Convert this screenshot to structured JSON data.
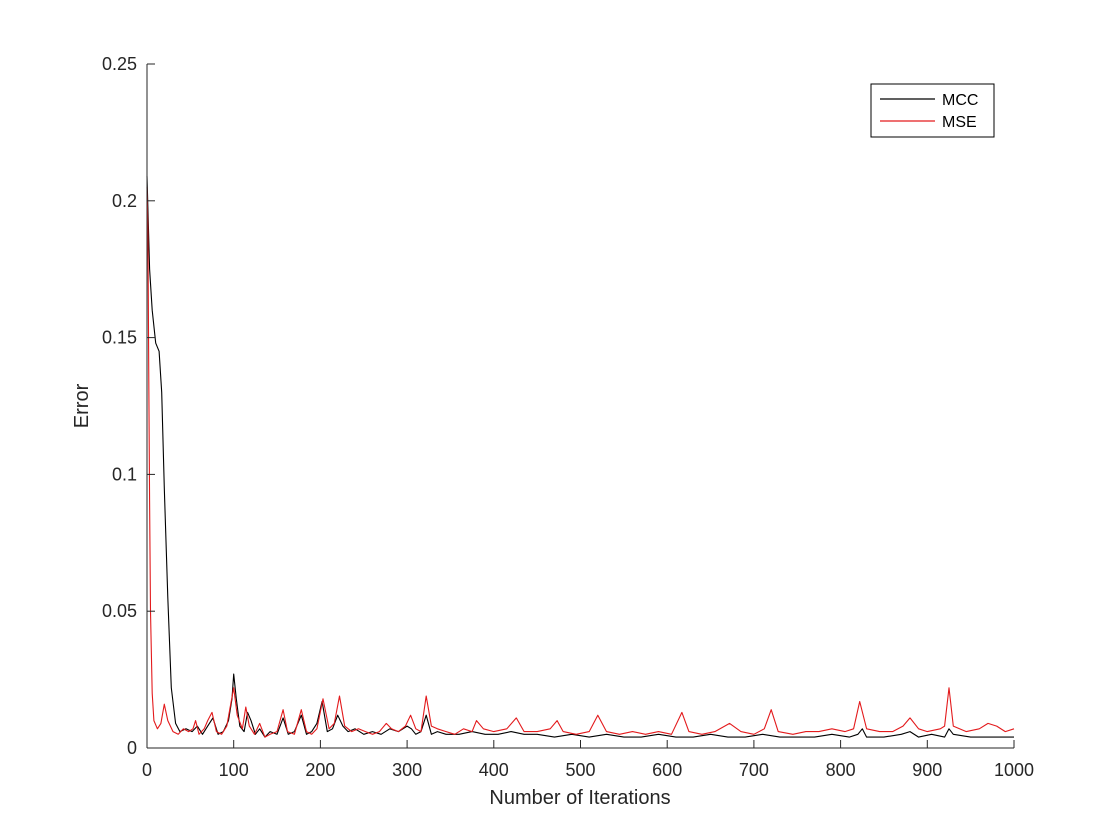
{
  "chart_data": {
    "type": "line",
    "title": "",
    "xlabel": "Number of Iterations",
    "ylabel": "Error",
    "xlim": [
      0,
      1000
    ],
    "ylim": [
      0,
      0.25
    ],
    "xticks": [
      0,
      100,
      200,
      300,
      400,
      500,
      600,
      700,
      800,
      900,
      1000
    ],
    "xtick_labels": [
      "0",
      "100",
      "200",
      "300",
      "400",
      "500",
      "600",
      "700",
      "800",
      "900",
      "1000"
    ],
    "yticks": [
      0,
      0.05,
      0.1,
      0.15,
      0.2,
      0.25
    ],
    "ytick_labels": [
      "0",
      "0.05",
      "0.1",
      "0.15",
      "0.2",
      "0.25"
    ],
    "grid": false,
    "legend_position": "top-right",
    "series": [
      {
        "name": "MCC",
        "color": "#000000",
        "x": [
          0,
          3,
          6,
          10,
          14,
          17,
          20,
          24,
          28,
          33,
          38,
          45,
          52,
          58,
          64,
          70,
          76,
          82,
          88,
          94,
          98,
          100,
          103,
          107,
          112,
          116,
          120,
          125,
          130,
          136,
          142,
          150,
          157,
          163,
          170,
          178,
          184,
          190,
          196,
          202,
          208,
          214,
          220,
          226,
          232,
          240,
          250,
          260,
          270,
          280,
          290,
          300,
          305,
          310,
          316,
          322,
          328,
          335,
          345,
          360,
          375,
          390,
          405,
          420,
          435,
          450,
          470,
          490,
          510,
          530,
          550,
          570,
          590,
          610,
          630,
          650,
          670,
          690,
          710,
          730,
          750,
          770,
          790,
          810,
          820,
          825,
          830,
          850,
          870,
          880,
          890,
          905,
          920,
          925,
          930,
          950,
          970,
          985,
          1000
        ],
        "y": [
          0.209,
          0.175,
          0.16,
          0.148,
          0.145,
          0.13,
          0.095,
          0.055,
          0.022,
          0.009,
          0.006,
          0.007,
          0.006,
          0.008,
          0.005,
          0.008,
          0.011,
          0.005,
          0.006,
          0.01,
          0.018,
          0.027,
          0.018,
          0.008,
          0.006,
          0.013,
          0.01,
          0.005,
          0.007,
          0.004,
          0.006,
          0.005,
          0.011,
          0.005,
          0.006,
          0.012,
          0.005,
          0.006,
          0.009,
          0.017,
          0.006,
          0.007,
          0.012,
          0.008,
          0.006,
          0.007,
          0.005,
          0.006,
          0.005,
          0.007,
          0.006,
          0.008,
          0.007,
          0.005,
          0.006,
          0.012,
          0.005,
          0.006,
          0.005,
          0.005,
          0.006,
          0.005,
          0.005,
          0.006,
          0.005,
          0.005,
          0.004,
          0.005,
          0.004,
          0.005,
          0.004,
          0.004,
          0.005,
          0.004,
          0.004,
          0.005,
          0.004,
          0.004,
          0.005,
          0.004,
          0.004,
          0.004,
          0.005,
          0.004,
          0.005,
          0.007,
          0.004,
          0.004,
          0.005,
          0.006,
          0.004,
          0.005,
          0.004,
          0.007,
          0.005,
          0.004,
          0.004,
          0.004,
          0.004
        ]
      },
      {
        "name": "MSE",
        "color": "#e31a1c",
        "x": [
          0,
          1,
          2,
          3,
          4,
          6,
          8,
          12,
          16,
          20,
          24,
          30,
          36,
          42,
          48,
          53,
          56,
          60,
          66,
          70,
          75,
          80,
          86,
          92,
          96,
          100,
          104,
          110,
          114,
          118,
          124,
          130,
          136,
          142,
          150,
          157,
          162,
          170,
          178,
          184,
          190,
          196,
          203,
          210,
          216,
          222,
          228,
          236,
          244,
          252,
          260,
          268,
          276,
          282,
          290,
          298,
          304,
          310,
          316,
          322,
          328,
          335,
          345,
          355,
          365,
          375,
          380,
          388,
          400,
          415,
          426,
          435,
          450,
          465,
          473,
          480,
          495,
          510,
          520,
          530,
          545,
          560,
          575,
          590,
          605,
          617,
          625,
          640,
          655,
          672,
          685,
          700,
          712,
          720,
          728,
          745,
          760,
          775,
          790,
          805,
          815,
          822,
          830,
          845,
          860,
          872,
          880,
          890,
          900,
          915,
          920,
          925,
          930,
          945,
          960,
          970,
          980,
          990,
          1000
        ],
        "y": [
          0.205,
          0.19,
          0.14,
          0.09,
          0.05,
          0.02,
          0.01,
          0.007,
          0.009,
          0.016,
          0.01,
          0.006,
          0.005,
          0.007,
          0.006,
          0.007,
          0.01,
          0.005,
          0.007,
          0.01,
          0.013,
          0.006,
          0.005,
          0.008,
          0.015,
          0.022,
          0.012,
          0.007,
          0.015,
          0.008,
          0.005,
          0.009,
          0.004,
          0.005,
          0.006,
          0.014,
          0.006,
          0.005,
          0.014,
          0.006,
          0.005,
          0.007,
          0.018,
          0.007,
          0.009,
          0.019,
          0.008,
          0.006,
          0.007,
          0.006,
          0.005,
          0.006,
          0.009,
          0.007,
          0.006,
          0.008,
          0.012,
          0.007,
          0.006,
          0.019,
          0.008,
          0.007,
          0.006,
          0.005,
          0.007,
          0.006,
          0.01,
          0.007,
          0.006,
          0.007,
          0.011,
          0.006,
          0.006,
          0.007,
          0.01,
          0.006,
          0.005,
          0.006,
          0.012,
          0.006,
          0.005,
          0.006,
          0.005,
          0.006,
          0.005,
          0.013,
          0.006,
          0.005,
          0.006,
          0.009,
          0.006,
          0.005,
          0.007,
          0.014,
          0.006,
          0.005,
          0.006,
          0.006,
          0.007,
          0.006,
          0.007,
          0.017,
          0.007,
          0.006,
          0.006,
          0.008,
          0.011,
          0.007,
          0.006,
          0.007,
          0.008,
          0.022,
          0.008,
          0.006,
          0.007,
          0.009,
          0.008,
          0.006,
          0.007
        ]
      }
    ]
  }
}
